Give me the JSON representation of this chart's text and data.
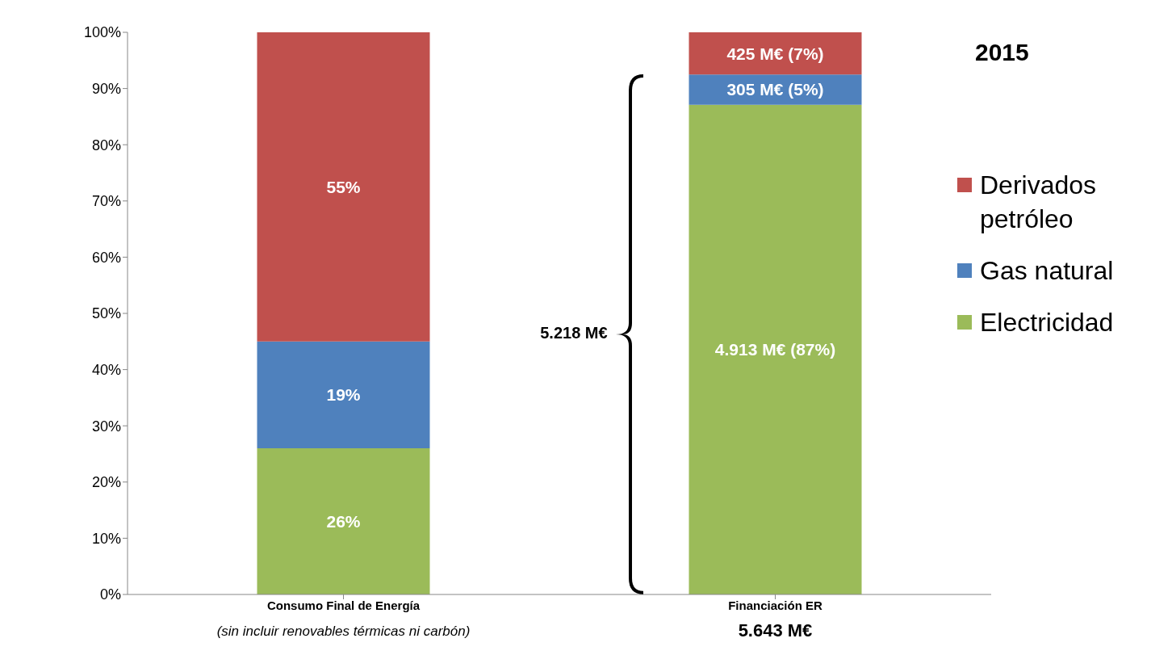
{
  "chart_data": {
    "type": "bar",
    "stacked": true,
    "categories": [
      "Consumo Final de Energía",
      "Financiación ER"
    ],
    "series": [
      {
        "name": "Electricidad",
        "color": "#9bbb59",
        "values": [
          26,
          87.1
        ],
        "value_labels": [
          "26%",
          "4.913 M€ (87%)"
        ]
      },
      {
        "name": "Gas natural",
        "color": "#4f81bd",
        "values": [
          19,
          5.4
        ],
        "value_labels": [
          "19%",
          "305 M€ (5%)"
        ]
      },
      {
        "name": "Derivados petróleo",
        "color": "#c0504d",
        "values": [
          55,
          7.5
        ],
        "value_labels": [
          "55%",
          "425 M€ (7%)"
        ]
      }
    ],
    "ylim": [
      0,
      100
    ],
    "yticks": [
      {
        "value": 0,
        "label": "0%"
      },
      {
        "value": 10,
        "label": "10%"
      },
      {
        "value": 20,
        "label": "20%"
      },
      {
        "value": 30,
        "label": "30%"
      },
      {
        "value": 40,
        "label": "40%"
      },
      {
        "value": 50,
        "label": "50%"
      },
      {
        "value": 60,
        "label": "60%"
      },
      {
        "value": 70,
        "label": "70%"
      },
      {
        "value": 80,
        "label": "80%"
      },
      {
        "value": 90,
        "label": "90%"
      },
      {
        "value": 100,
        "label": "100%"
      }
    ],
    "legend": "right",
    "grid": false,
    "annotations": [
      "2015",
      "(sin incluir renovables térmicas ni carbón)",
      "5.643 M€",
      "5.218 M€"
    ]
  }
}
